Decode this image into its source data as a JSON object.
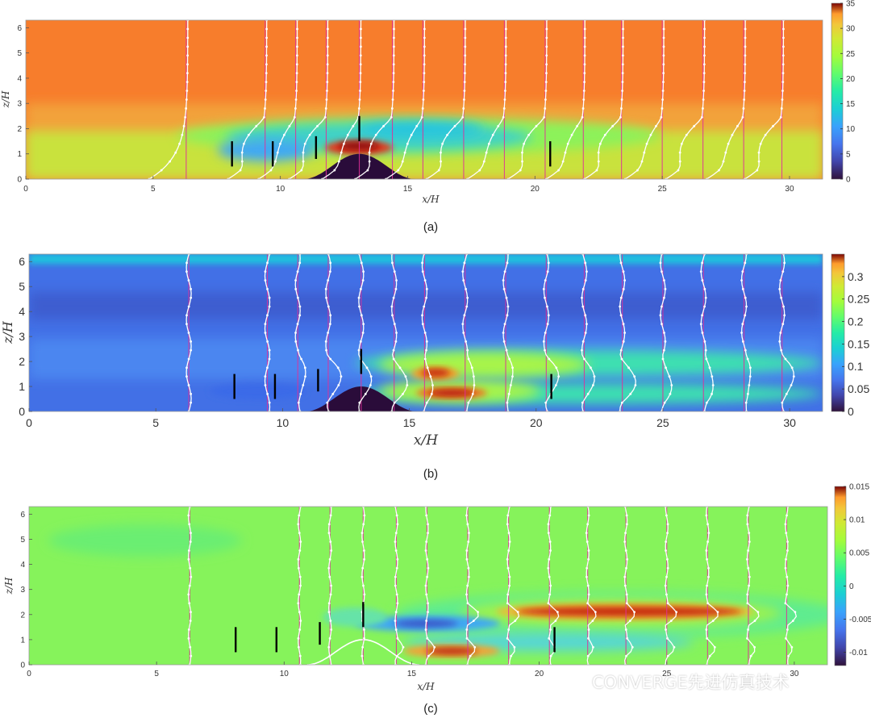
{
  "watermark": {
    "text": "CONVERGE先进仿真技术",
    "icon": "wechat-icon"
  },
  "chart_data": [
    {
      "type": "heatmap",
      "caption": "(a)",
      "xlabel": "x/H",
      "ylabel": "z/H",
      "xlim": [
        0,
        31.3
      ],
      "ylim": [
        0,
        6.3
      ],
      "xticks": [
        0,
        5,
        10,
        15,
        20,
        25,
        30
      ],
      "yticks": [
        0,
        1,
        2,
        3,
        4,
        5,
        6
      ],
      "colorbar": {
        "min": 0,
        "max": 35,
        "ticks": [
          0,
          5,
          10,
          15,
          20,
          25,
          30,
          35
        ],
        "colormap": "turbo"
      },
      "hill": {
        "center": 13.1,
        "half_width": 2.2,
        "height": 1.0
      },
      "profile_x": [
        6.3,
        9.4,
        10.6,
        11.8,
        13.1,
        14.4,
        15.6,
        17.2,
        18.8,
        20.4,
        21.9,
        23.4,
        25.0,
        26.6,
        28.2,
        29.7
      ],
      "vertical_lines_color": "#e0309a",
      "turbines": [
        {
          "x": 8.1,
          "z": [
            0.5,
            1.5
          ]
        },
        {
          "x": 9.7,
          "z": [
            0.5,
            1.5
          ]
        },
        {
          "x": 11.4,
          "z": [
            0.8,
            1.7
          ]
        },
        {
          "x": 13.1,
          "z": [
            1.5,
            2.5
          ]
        },
        {
          "x": 20.6,
          "z": [
            0.5,
            1.5
          ]
        }
      ]
    },
    {
      "type": "heatmap",
      "caption": "(b)",
      "xlabel": "x/H",
      "ylabel": "z/H",
      "xlim": [
        0,
        31.3
      ],
      "ylim": [
        0,
        6.3
      ],
      "xticks": [
        0,
        5,
        10,
        15,
        20,
        25,
        30
      ],
      "yticks": [
        0,
        1,
        2,
        3,
        4,
        5,
        6
      ],
      "colorbar": {
        "min": 0,
        "max": 0.35,
        "ticks": [
          0,
          0.05,
          0.1,
          0.15,
          0.2,
          0.25,
          0.3
        ],
        "colormap": "turbo"
      },
      "hill": {
        "center": 13.1,
        "half_width": 2.2,
        "height": 1.0
      },
      "profile_x": [
        6.3,
        9.4,
        10.6,
        11.8,
        13.1,
        14.4,
        15.6,
        17.2,
        18.8,
        20.4,
        21.9,
        23.4,
        25.0,
        26.6,
        28.2,
        29.7
      ],
      "vertical_lines_color": "#e0309a",
      "turbines": [
        {
          "x": 8.1,
          "z": [
            0.5,
            1.5
          ]
        },
        {
          "x": 9.7,
          "z": [
            0.5,
            1.5
          ]
        },
        {
          "x": 11.4,
          "z": [
            0.8,
            1.7
          ]
        },
        {
          "x": 13.1,
          "z": [
            1.5,
            2.5
          ]
        },
        {
          "x": 20.6,
          "z": [
            0.5,
            1.5
          ]
        }
      ]
    },
    {
      "type": "heatmap",
      "caption": "(c)",
      "xlabel": "x/H",
      "ylabel": "z/H",
      "xlim": [
        0,
        31.3
      ],
      "ylim": [
        0,
        6.3
      ],
      "xticks": [
        0,
        5,
        10,
        15,
        20,
        25,
        30
      ],
      "yticks": [
        0,
        1,
        2,
        3,
        4,
        5,
        6
      ],
      "colorbar": {
        "min": -0.012,
        "max": 0.015,
        "ticks": [
          -0.01,
          -0.005,
          0,
          0.005,
          0.01,
          0.015
        ],
        "colormap": "turbo"
      },
      "hill": {
        "center": 13.1,
        "half_width": 2.2,
        "height": 1.0
      },
      "profile_x": [
        6.3,
        10.6,
        11.8,
        13.1,
        14.4,
        15.6,
        17.2,
        18.8,
        20.4,
        21.9,
        23.4,
        25.0,
        26.6,
        28.2,
        29.7
      ],
      "vertical_lines_color": "#e0309a",
      "turbines": [
        {
          "x": 8.1,
          "z": [
            0.5,
            1.5
          ]
        },
        {
          "x": 9.7,
          "z": [
            0.5,
            1.5
          ]
        },
        {
          "x": 11.4,
          "z": [
            0.8,
            1.7
          ]
        },
        {
          "x": 13.1,
          "z": [
            1.5,
            2.5
          ]
        },
        {
          "x": 20.6,
          "z": [
            0.5,
            1.5
          ]
        }
      ]
    }
  ]
}
